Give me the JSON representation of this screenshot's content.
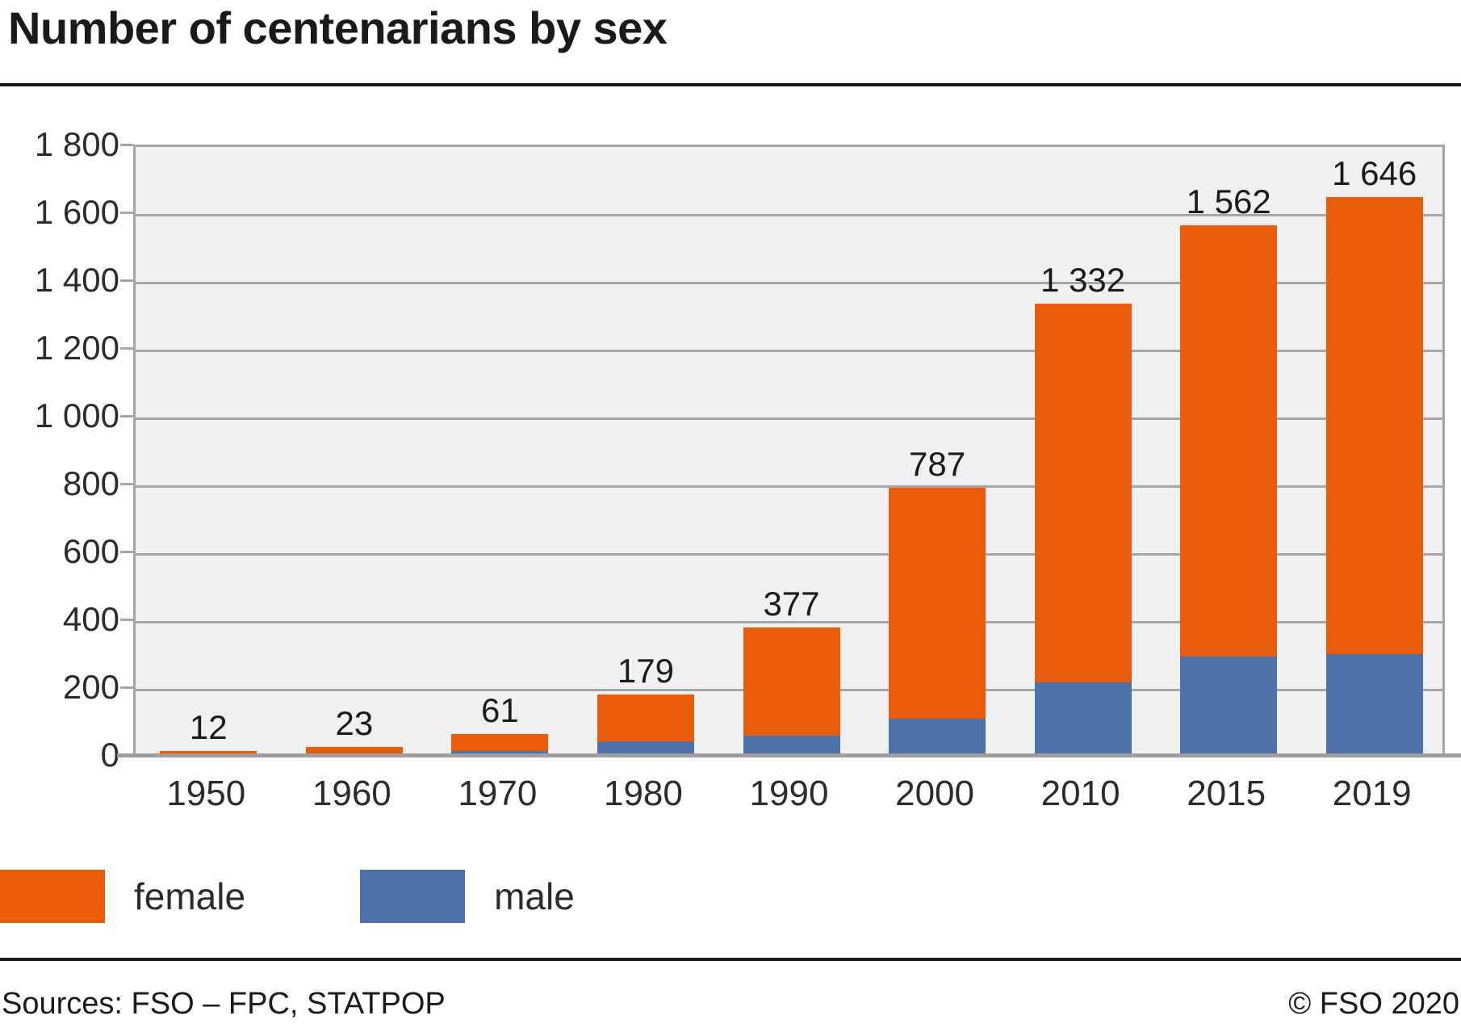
{
  "page": {
    "title": "Number of centenarians by sex"
  },
  "footer": {
    "sources": "Sources: FSO – FPC, STATPOP",
    "copyright": "© FSO 2020"
  },
  "chart_data": {
    "type": "bar",
    "stacked": true,
    "title": "Number of centenarians by sex",
    "categories": [
      "1950",
      "1960",
      "1970",
      "1980",
      "1990",
      "2000",
      "2010",
      "2015",
      "2019"
    ],
    "series": [
      {
        "name": "male",
        "color": "#4e71a8",
        "values": [
          2,
          3,
          13,
          40,
          58,
          107,
          215,
          290,
          298
        ]
      },
      {
        "name": "female",
        "color": "#e85c0c",
        "values": [
          10,
          20,
          48,
          139,
          319,
          680,
          1117,
          1272,
          1348
        ]
      }
    ],
    "totals": [
      12,
      23,
      61,
      179,
      377,
      787,
      1332,
      1562,
      1646
    ],
    "total_labels": [
      "12",
      "23",
      "61",
      "179",
      "377",
      "787",
      "1 332",
      "1 562",
      "1 646"
    ],
    "ylim": [
      0,
      1800
    ],
    "ytick_step": 200,
    "ytick_labels": [
      "0",
      "200",
      "400",
      "600",
      "800",
      "1 000",
      "1 200",
      "1 400",
      "1 600",
      "1 800"
    ],
    "xlabel": "",
    "ylabel": "",
    "grid": true,
    "plot_bg": "#f0f0f0",
    "grid_color": "#a6a6a6",
    "axis_color": "#9e9e9e",
    "legend_position": "bottom-left",
    "legend": [
      {
        "label": "female",
        "color": "#e85c0c"
      },
      {
        "label": "male",
        "color": "#4e71a8"
      }
    ]
  }
}
